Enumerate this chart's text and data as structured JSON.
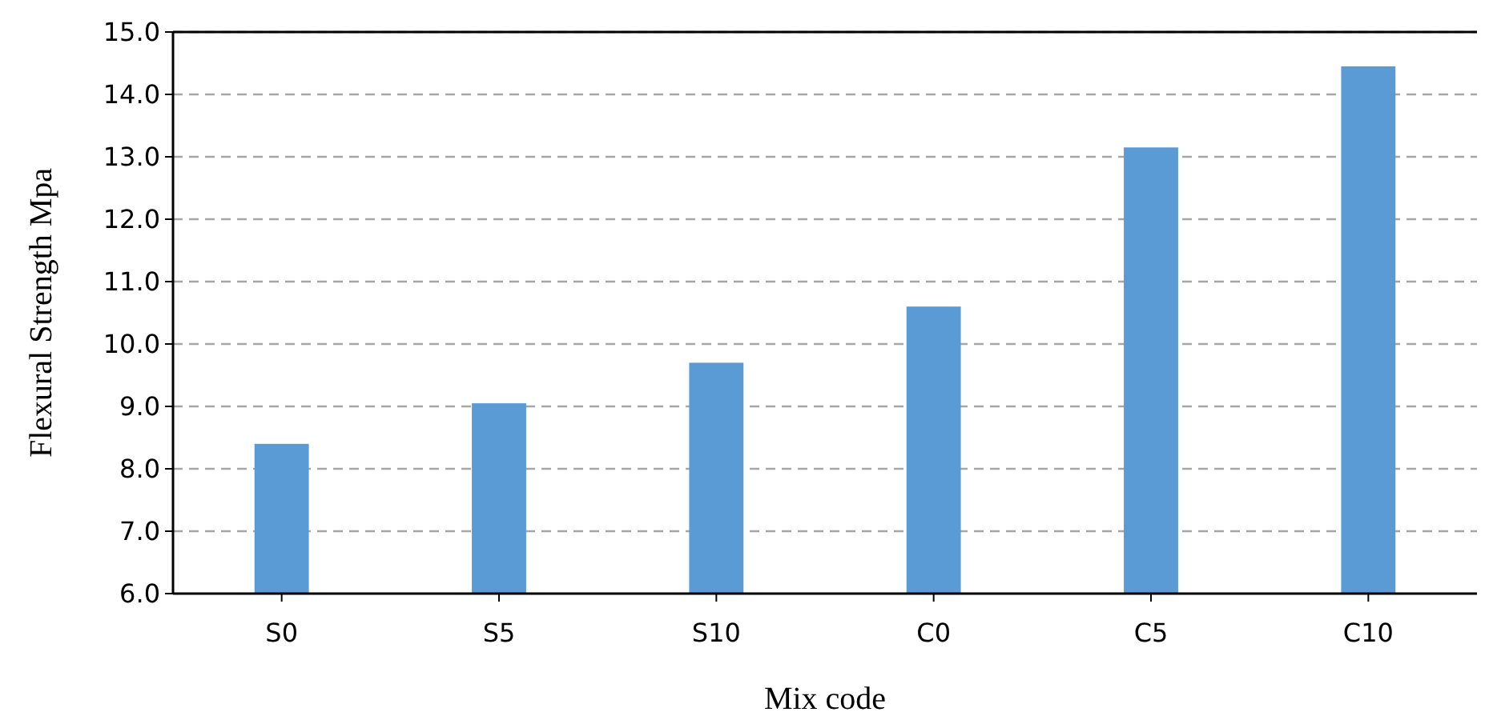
{
  "chart_data": {
    "type": "bar",
    "xlabel": "Mix code",
    "ylabel": "Flexural Strength Mpa",
    "categories": [
      "S0",
      "S5",
      "S10",
      "C0",
      "C5",
      "C10"
    ],
    "values": [
      8.4,
      9.05,
      9.7,
      10.6,
      13.15,
      14.45
    ],
    "color": "#5b9bd5",
    "ylim": [
      6,
      15
    ],
    "yticks": [
      {
        "value": 6,
        "label": "6.0"
      },
      {
        "value": 7,
        "label": "7.0"
      },
      {
        "value": 8,
        "label": "8.0"
      },
      {
        "value": 9,
        "label": "9.0"
      },
      {
        "value": 10,
        "label": "10.0"
      },
      {
        "value": 11,
        "label": "11.0"
      },
      {
        "value": 12,
        "label": "12.0"
      },
      {
        "value": 13,
        "label": "13.0"
      },
      {
        "value": 14,
        "label": "14.0"
      },
      {
        "value": 15,
        "label": "15.0"
      }
    ],
    "grid": "y"
  }
}
